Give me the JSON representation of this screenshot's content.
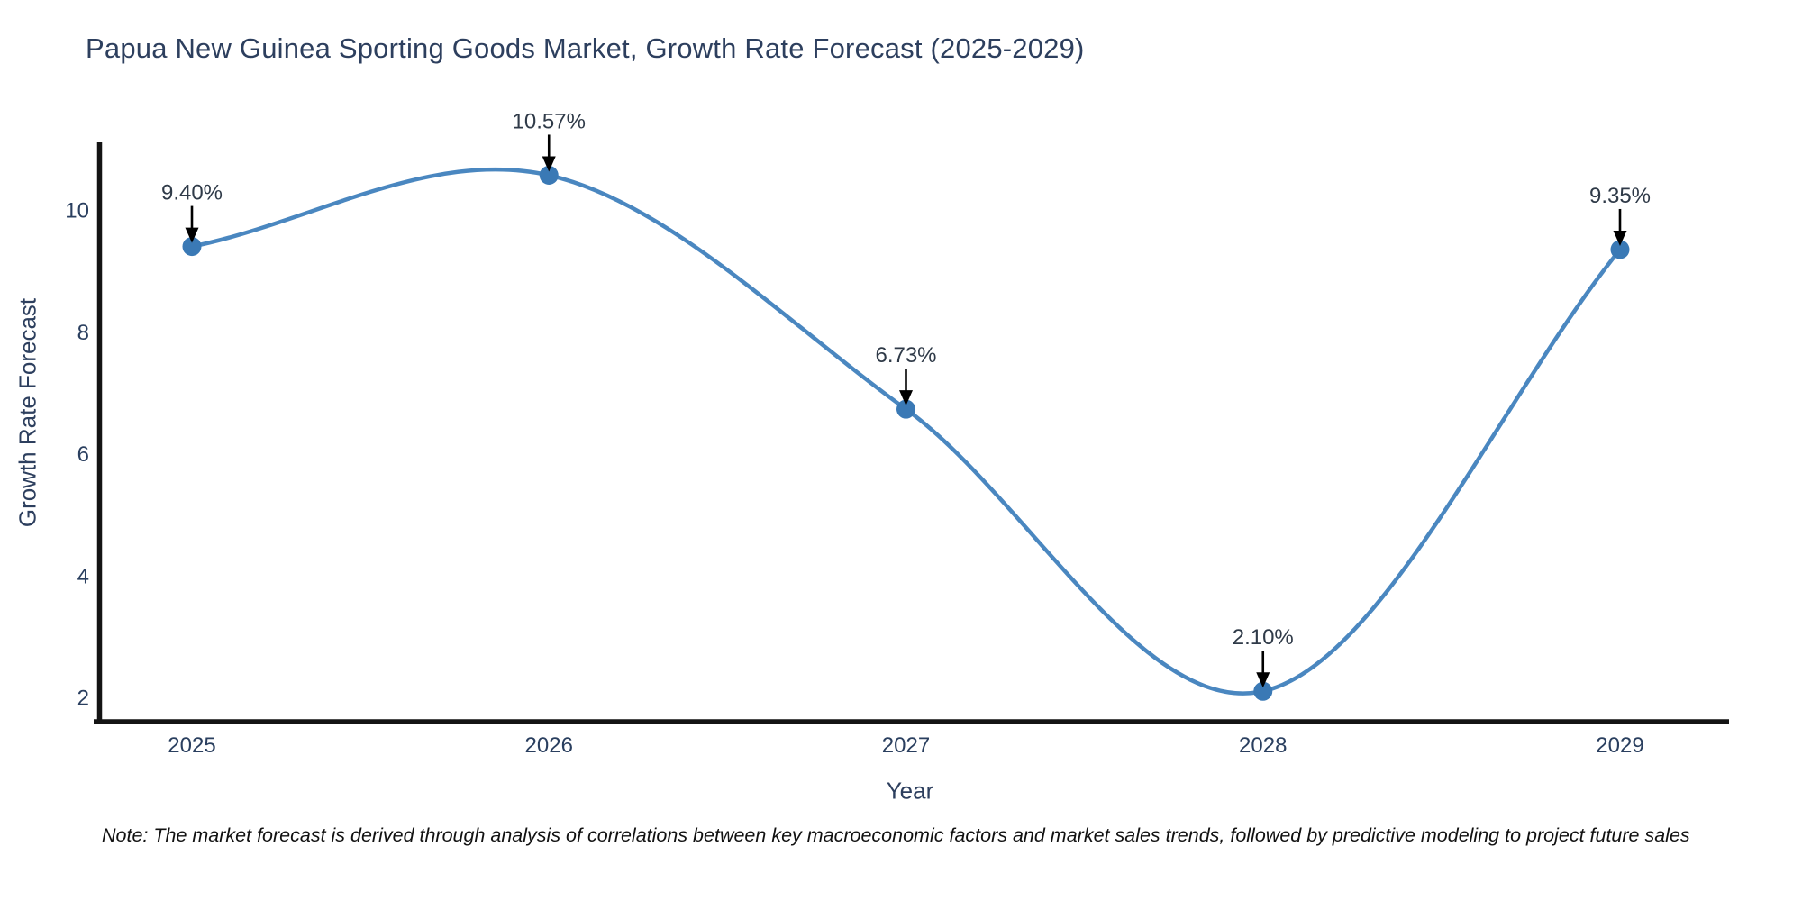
{
  "chart": {
    "title": "Papua New Guinea Sporting Goods Market, Growth Rate Forecast (2025-2029)",
    "xlabel": "Year",
    "ylabel": "Growth Rate Forecast",
    "note": "Note: The market forecast is derived through analysis of correlations between key macroeconomic factors and market sales trends, followed by predictive modeling to project future sales"
  },
  "chart_data": {
    "type": "line",
    "title": "Papua New Guinea Sporting Goods Market, Growth Rate Forecast (2025-2029)",
    "xlabel": "Year",
    "ylabel": "Growth Rate Forecast",
    "categories": [
      "2025",
      "2026",
      "2027",
      "2028",
      "2029"
    ],
    "values": [
      9.4,
      10.57,
      6.73,
      2.1,
      9.35
    ],
    "point_labels": [
      "9.40%",
      "10.57%",
      "6.73%",
      "2.10%",
      "9.35%"
    ],
    "yticks": [
      2,
      4,
      6,
      8,
      10
    ],
    "ylim": [
      1.6,
      11.2
    ],
    "line_shape": "spline",
    "grid": false,
    "legend_position": "none",
    "annotation_note": "Note: The market forecast is derived through analysis of correlations between key macroeconomic factors and market sales trends, followed by predictive modeling to project future sales",
    "colors": {
      "line": "#4a87c0",
      "marker": "#3a79b5",
      "title_text": "#2d3f5e",
      "tick_text": "#2a3f5f",
      "annotation_text": "#2f3a48",
      "arrow": "#000000",
      "axis_line": "#141414",
      "background": "#ffffff"
    }
  }
}
